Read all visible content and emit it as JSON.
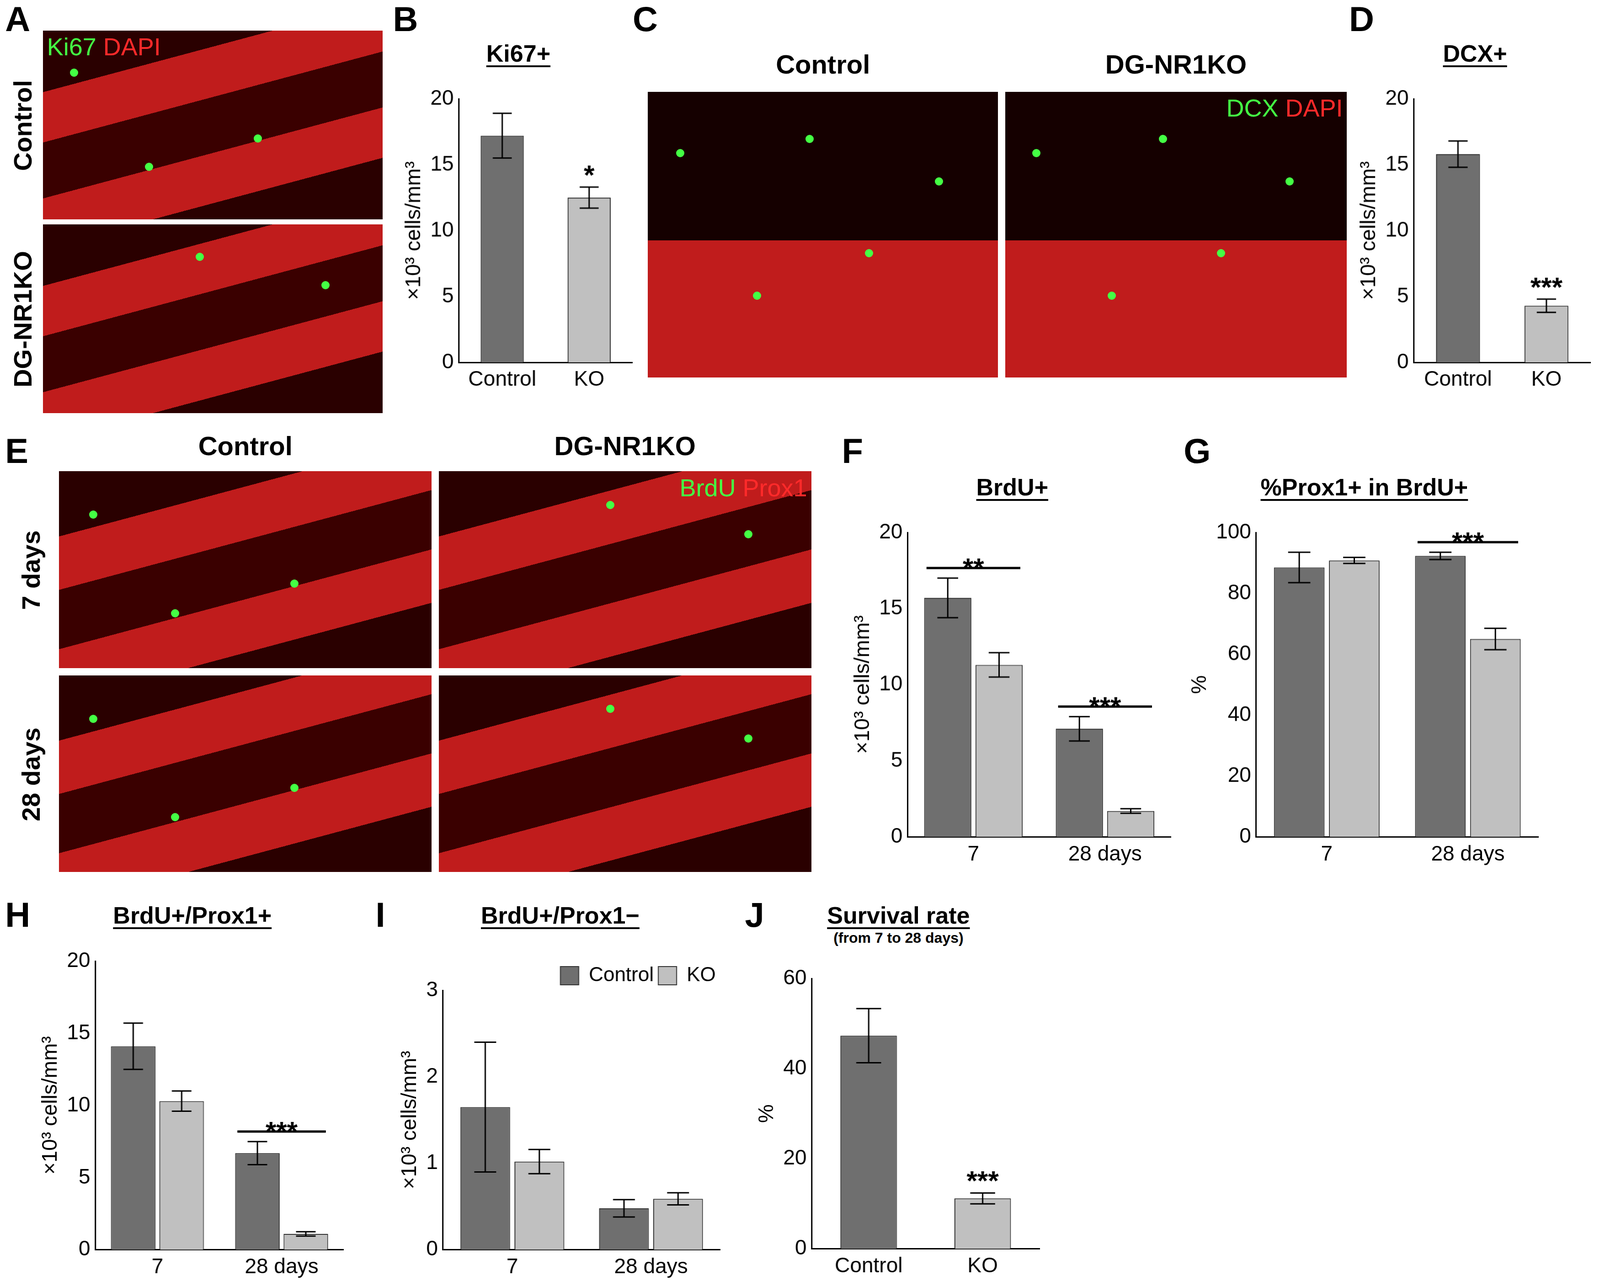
{
  "chart_data": [
    {
      "panel": "B",
      "type": "bar",
      "title": "Ki67+",
      "y_label": "×10³ cells/mm³",
      "categories": [
        "Control",
        "KO"
      ],
      "values": [
        17.2,
        12.5
      ],
      "errors": [
        1.7,
        0.8
      ],
      "colors": [
        "#6f6f6f",
        "#c0c0c0"
      ],
      "ylim": [
        0,
        20
      ],
      "yticks": [
        0,
        5,
        10,
        15,
        20
      ],
      "significance": [
        null,
        "*"
      ],
      "grid": false
    },
    {
      "panel": "D",
      "type": "bar",
      "title": "DCX+",
      "y_label": "×10³ cells/mm³",
      "categories": [
        "Control",
        "KO"
      ],
      "values": [
        15.8,
        4.3
      ],
      "errors": [
        1.0,
        0.5
      ],
      "colors": [
        "#6f6f6f",
        "#c0c0c0"
      ],
      "ylim": [
        0,
        20
      ],
      "yticks": [
        0,
        5,
        10,
        15,
        20
      ],
      "significance": [
        null,
        "***"
      ],
      "grid": false
    },
    {
      "panel": "F",
      "type": "bar",
      "title": "BrdU+",
      "y_label": "×10³ cells/mm³",
      "categories": [
        "7",
        "28 days"
      ],
      "series": [
        {
          "color": "#6f6f6f",
          "values": [
            15.7,
            7.1
          ],
          "errors": [
            1.3,
            0.8
          ]
        },
        {
          "color": "#c0c0c0",
          "values": [
            11.3,
            1.7
          ],
          "errors": [
            0.8,
            0.15
          ]
        }
      ],
      "ylim": [
        0,
        20
      ],
      "yticks": [
        0,
        5,
        10,
        15,
        20
      ],
      "significance": [
        "**",
        "***"
      ],
      "grid": false
    },
    {
      "panel": "G",
      "type": "bar",
      "title": "%Prox1+ in BrdU+",
      "y_label": "%",
      "categories": [
        "7",
        "28 days"
      ],
      "series": [
        {
          "color": "#6f6f6f",
          "values": [
            88.5,
            92.3
          ],
          "errors": [
            5.0,
            1.2
          ]
        },
        {
          "color": "#c0c0c0",
          "values": [
            90.8,
            65.0
          ],
          "errors": [
            1.0,
            3.5
          ]
        }
      ],
      "ylim": [
        0,
        100
      ],
      "yticks": [
        0,
        20,
        40,
        60,
        80,
        100
      ],
      "significance": [
        null,
        "***"
      ],
      "grid": false
    },
    {
      "panel": "H",
      "type": "bar",
      "title": "BrdU+/Prox1+",
      "y_label": "×10³ cells/mm³",
      "categories": [
        "7",
        "28 days"
      ],
      "series": [
        {
          "color": "#6f6f6f",
          "values": [
            14.1,
            6.7
          ],
          "errors": [
            1.6,
            0.8
          ]
        },
        {
          "color": "#c0c0c0",
          "values": [
            10.3,
            1.1
          ],
          "errors": [
            0.7,
            0.15
          ]
        }
      ],
      "ylim": [
        0,
        20
      ],
      "yticks": [
        0,
        5,
        10,
        15,
        20
      ],
      "significance": [
        null,
        "***"
      ],
      "grid": false
    },
    {
      "panel": "I",
      "type": "bar",
      "title": "BrdU+/Prox1−",
      "y_label": "×10³ cells/mm³",
      "categories": [
        "7",
        "28 days"
      ],
      "series": [
        {
          "name": "Control",
          "color": "#6f6f6f",
          "values": [
            1.65,
            0.48
          ],
          "errors": [
            0.75,
            0.1
          ]
        },
        {
          "name": "KO",
          "color": "#c0c0c0",
          "values": [
            1.02,
            0.59
          ],
          "errors": [
            0.14,
            0.07
          ]
        }
      ],
      "ylim": [
        0,
        3
      ],
      "yticks": [
        0,
        1,
        2,
        3
      ],
      "legend": "upper right",
      "grid": false
    },
    {
      "panel": "J",
      "type": "bar",
      "title": "Survival rate",
      "subtitle": "(from 7 to 28 days)",
      "y_label": "%",
      "categories": [
        "Control",
        "KO"
      ],
      "values": [
        47.3,
        11.2
      ],
      "errors": [
        6.0,
        1.2
      ],
      "colors": [
        "#6f6f6f",
        "#c0c0c0"
      ],
      "ylim": [
        0,
        60
      ],
      "yticks": [
        0,
        20,
        40,
        60
      ],
      "significance": [
        null,
        "***"
      ],
      "grid": false
    }
  ],
  "image_panels": [
    {
      "panel": "A",
      "rows": [
        "Control",
        "DG-NR1KO"
      ],
      "columns": [],
      "stains": [
        {
          "text": "Ki67",
          "color": "#44ff44"
        },
        {
          "text": "DAPI",
          "color": "#ff2a2a"
        }
      ]
    },
    {
      "panel": "C",
      "rows": [],
      "columns": [
        "Control",
        "DG-NR1KO"
      ],
      "stains": [
        {
          "text": "DCX",
          "color": "#44ff44"
        },
        {
          "text": "DAPI",
          "color": "#ff2a2a"
        }
      ]
    },
    {
      "panel": "E",
      "rows": [
        "7 days",
        "28 days"
      ],
      "columns": [
        "Control",
        "DG-NR1KO"
      ],
      "stains": [
        {
          "text": "BrdU",
          "color": "#44ff44"
        },
        {
          "text": "Prox1",
          "color": "#ff2a2a"
        }
      ]
    }
  ]
}
